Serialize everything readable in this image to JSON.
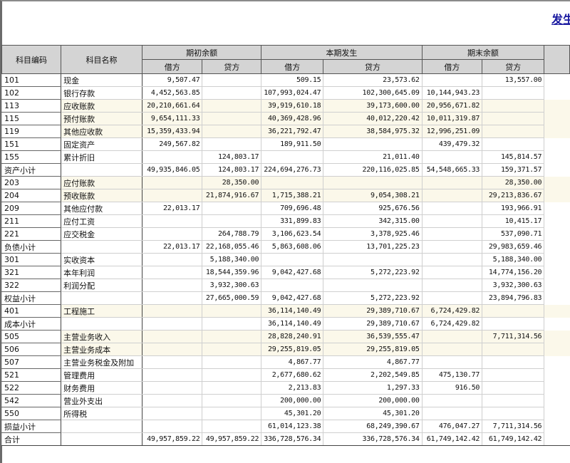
{
  "report_title": "发生",
  "header": {
    "code": "科目编码",
    "name": "科目名称",
    "opening": "期初余额",
    "current": "本期发生",
    "closing": "期末余额",
    "debit": "借方",
    "credit": "贷方"
  },
  "colors": {
    "highlight_row": "#fbf8ea",
    "header_bg": "#d4d4d4",
    "title": "#1a1aa0"
  },
  "rows": [
    {
      "code": "101",
      "name": "现金",
      "v": [
        "9,507.47",
        "",
        "509.15",
        "23,573.62",
        "",
        "13,557.00"
      ],
      "hl": false
    },
    {
      "code": "102",
      "name": "银行存款",
      "v": [
        "4,452,563.85",
        "",
        "107,993,024.47",
        "102,300,645.09",
        "10,144,943.23",
        ""
      ],
      "hl": false
    },
    {
      "code": "113",
      "name": "应收账款",
      "v": [
        "20,210,661.64",
        "",
        "39,919,610.18",
        "39,173,600.00",
        "20,956,671.82",
        ""
      ],
      "hl": true
    },
    {
      "code": "115",
      "name": "预付账款",
      "v": [
        "9,654,111.33",
        "",
        "40,369,428.96",
        "40,012,220.42",
        "10,011,319.87",
        ""
      ],
      "hl": true
    },
    {
      "code": "119",
      "name": "其他应收款",
      "v": [
        "15,359,433.94",
        "",
        "36,221,792.47",
        "38,584,975.32",
        "12,996,251.09",
        ""
      ],
      "hl": true
    },
    {
      "code": "151",
      "name": "固定资产",
      "v": [
        "249,567.82",
        "",
        "189,911.50",
        "",
        "439,479.32",
        ""
      ],
      "hl": false
    },
    {
      "code": "155",
      "name": "累计折旧",
      "v": [
        "",
        "124,803.17",
        "",
        "21,011.40",
        "",
        "145,814.57"
      ],
      "hl": false
    },
    {
      "code": "资产小计",
      "name": "",
      "v": [
        "49,935,846.05",
        "124,803.17",
        "224,694,276.73",
        "220,116,025.85",
        "54,548,665.33",
        "159,371.57"
      ],
      "hl": false
    },
    {
      "code": "203",
      "name": "应付账款",
      "v": [
        "",
        "28,350.00",
        "",
        "",
        "",
        "28,350.00"
      ],
      "hl": true
    },
    {
      "code": "204",
      "name": "预收账款",
      "v": [
        "",
        "21,874,916.67",
        "1,715,388.21",
        "9,054,308.21",
        "",
        "29,213,836.67"
      ],
      "hl": true
    },
    {
      "code": "209",
      "name": "其他应付款",
      "v": [
        "22,013.17",
        "",
        "709,696.48",
        "925,676.56",
        "",
        "193,966.91"
      ],
      "hl": false
    },
    {
      "code": "211",
      "name": "应付工资",
      "v": [
        "",
        "",
        "331,899.83",
        "342,315.00",
        "",
        "10,415.17"
      ],
      "hl": false
    },
    {
      "code": "221",
      "name": "应交税金",
      "v": [
        "",
        "264,788.79",
        "3,106,623.54",
        "3,378,925.46",
        "",
        "537,090.71"
      ],
      "hl": false
    },
    {
      "code": "负债小计",
      "name": "",
      "v": [
        "22,013.17",
        "22,168,055.46",
        "5,863,608.06",
        "13,701,225.23",
        "",
        "29,983,659.46"
      ],
      "hl": false
    },
    {
      "code": "301",
      "name": "实收资本",
      "v": [
        "",
        "5,188,340.00",
        "",
        "",
        "",
        "5,188,340.00"
      ],
      "hl": false
    },
    {
      "code": "321",
      "name": "本年利润",
      "v": [
        "",
        "18,544,359.96",
        "9,042,427.68",
        "5,272,223.92",
        "",
        "14,774,156.20"
      ],
      "hl": false
    },
    {
      "code": "322",
      "name": "利润分配",
      "v": [
        "",
        "3,932,300.63",
        "",
        "",
        "",
        "3,932,300.63"
      ],
      "hl": false
    },
    {
      "code": "权益小计",
      "name": "",
      "v": [
        "",
        "27,665,000.59",
        "9,042,427.68",
        "5,272,223.92",
        "",
        "23,894,796.83"
      ],
      "hl": false
    },
    {
      "code": "401",
      "name": "工程施工",
      "v": [
        "",
        "",
        "36,114,140.49",
        "29,389,710.67",
        "6,724,429.82",
        ""
      ],
      "hl": true
    },
    {
      "code": "成本小计",
      "name": "",
      "v": [
        "",
        "",
        "36,114,140.49",
        "29,389,710.67",
        "6,724,429.82",
        ""
      ],
      "hl": false
    },
    {
      "code": "505",
      "name": "主营业务收入",
      "v": [
        "",
        "",
        "28,828,240.91",
        "36,539,555.47",
        "",
        "7,711,314.56"
      ],
      "hl": true
    },
    {
      "code": "506",
      "name": "主营业务成本",
      "v": [
        "",
        "",
        "29,255,819.05",
        "29,255,819.05",
        "",
        ""
      ],
      "hl": true
    },
    {
      "code": "507",
      "name": "主营业务税金及附加",
      "v": [
        "",
        "",
        "4,867.77",
        "4,867.77",
        "",
        ""
      ],
      "hl": false
    },
    {
      "code": "521",
      "name": "管理费用",
      "v": [
        "",
        "",
        "2,677,680.62",
        "2,202,549.85",
        "475,130.77",
        ""
      ],
      "hl": false
    },
    {
      "code": "522",
      "name": "财务费用",
      "v": [
        "",
        "",
        "2,213.83",
        "1,297.33",
        "916.50",
        ""
      ],
      "hl": false
    },
    {
      "code": "542",
      "name": "营业外支出",
      "v": [
        "",
        "",
        "200,000.00",
        "200,000.00",
        "",
        ""
      ],
      "hl": false
    },
    {
      "code": "550",
      "name": "所得税",
      "v": [
        "",
        "",
        "45,301.20",
        "45,301.20",
        "",
        ""
      ],
      "hl": false
    },
    {
      "code": "损益小计",
      "name": "",
      "v": [
        "",
        "",
        "61,014,123.38",
        "68,249,390.67",
        "476,047.27",
        "7,711,314.56"
      ],
      "hl": false
    },
    {
      "code": "合计",
      "name": "",
      "v": [
        "49,957,859.22",
        "49,957,859.22",
        "336,728,576.34",
        "336,728,576.34",
        "61,749,142.42",
        "61,749,142.42"
      ],
      "hl": false
    }
  ]
}
